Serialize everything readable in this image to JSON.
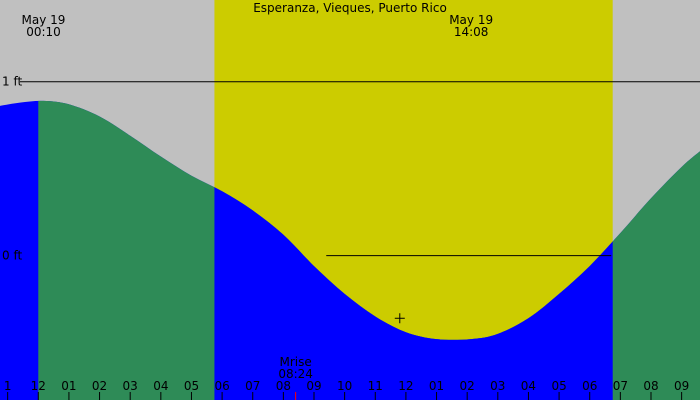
{
  "chart_data": {
    "type": "area",
    "title": "Esperanza, Vieques, Puerto Rico",
    "y_unit": "ft",
    "x_ticks": [
      "1",
      "12",
      "01",
      "02",
      "03",
      "04",
      "05",
      "06",
      "07",
      "08",
      "09",
      "10",
      "11",
      "12",
      "01",
      "02",
      "03",
      "04",
      "05",
      "06",
      "07",
      "08",
      "09"
    ],
    "y_ticks": [
      {
        "label": "1 ft",
        "value": 1.0
      },
      {
        "label": "0 ft",
        "value": 0.0
      }
    ],
    "x_range_hours": [
      -1.25,
      21.6
    ],
    "y_range_ft": [
      -0.83,
      1.47
    ],
    "daylight_hours": [
      5.75,
      18.75
    ],
    "tide_curve": [
      {
        "hour": -1.3,
        "ft": 0.86
      },
      {
        "hour": -0.6,
        "ft": 0.88
      },
      {
        "hour": 0.17,
        "ft": 0.89
      },
      {
        "hour": 1.0,
        "ft": 0.87
      },
      {
        "hour": 2.0,
        "ft": 0.8
      },
      {
        "hour": 3.0,
        "ft": 0.69
      },
      {
        "hour": 4.0,
        "ft": 0.57
      },
      {
        "hour": 5.0,
        "ft": 0.46
      },
      {
        "hour": 6.0,
        "ft": 0.37
      },
      {
        "hour": 7.0,
        "ft": 0.26
      },
      {
        "hour": 8.0,
        "ft": 0.12
      },
      {
        "hour": 9.0,
        "ft": -0.06
      },
      {
        "hour": 10.0,
        "ft": -0.22
      },
      {
        "hour": 11.0,
        "ft": -0.35
      },
      {
        "hour": 12.0,
        "ft": -0.44
      },
      {
        "hour": 13.0,
        "ft": -0.48
      },
      {
        "hour": 14.13,
        "ft": -0.48
      },
      {
        "hour": 15.0,
        "ft": -0.45
      },
      {
        "hour": 16.0,
        "ft": -0.36
      },
      {
        "hour": 17.0,
        "ft": -0.22
      },
      {
        "hour": 18.0,
        "ft": -0.06
      },
      {
        "hour": 19.0,
        "ft": 0.13
      },
      {
        "hour": 20.0,
        "ft": 0.33
      },
      {
        "hour": 21.0,
        "ft": 0.51
      },
      {
        "hour": 21.6,
        "ft": 0.6
      }
    ],
    "moon_visible_from_hour": 0.0,
    "annotations": [
      {
        "id": "max",
        "line1": "May 19",
        "line2": "00:10",
        "hour": 0.17
      },
      {
        "id": "min",
        "line1": "May 19",
        "line2": "14:08",
        "hour": 14.13
      },
      {
        "id": "mrise",
        "line1": "Mrise",
        "line2": "08:24",
        "hour": 8.4
      }
    ],
    "cursor": {
      "hour": 11.8,
      "ft": -0.36
    },
    "colors": {
      "background": "#c0c0c0",
      "daylight": "#cccc00",
      "tide_day": "#2e8b57",
      "tide_night": "#0000ff",
      "moon_marker": "#ff0000"
    }
  }
}
